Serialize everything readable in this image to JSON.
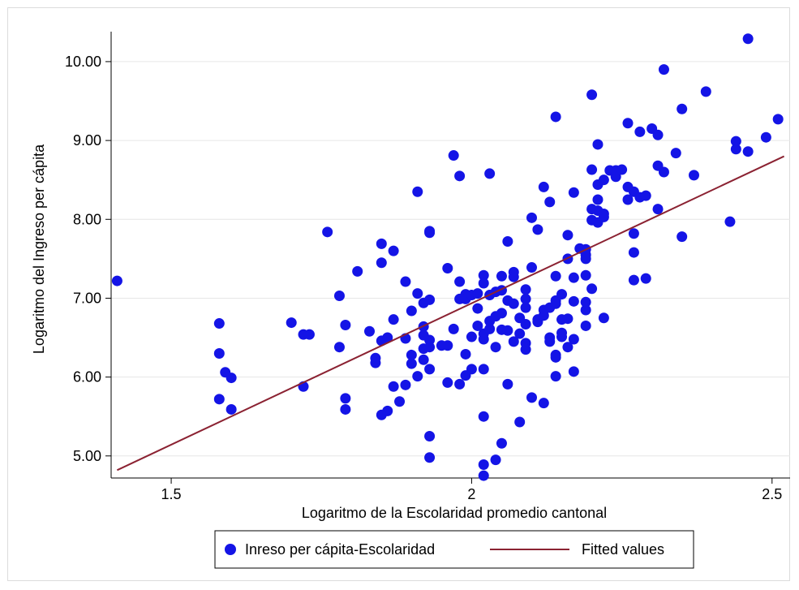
{
  "chart_data": {
    "type": "scatter",
    "title": "",
    "xlabel": "Logaritmo de la Escolaridad promedio cantonal",
    "ylabel": "Logaritmo del Ingreso per cápita",
    "xlim": [
      1.4,
      2.53
    ],
    "ylim": [
      4.72,
      10.38
    ],
    "x_ticks": [
      1.5,
      2,
      2.5
    ],
    "x_tick_labels": [
      "1.5",
      "2",
      "2.5"
    ],
    "y_ticks": [
      5,
      6,
      7,
      8,
      9,
      10
    ],
    "y_tick_labels": [
      "5.00",
      "6.00",
      "7.00",
      "8.00",
      "9.00",
      "10.00"
    ],
    "grid": "horizontal",
    "legend_position": "bottom",
    "series": [
      {
        "name": "Inreso per cápita-Escolaridad",
        "kind": "scatter",
        "color": "#1414e6",
        "points": [
          [
            1.41,
            7.22
          ],
          [
            1.58,
            6.68
          ],
          [
            1.58,
            6.3
          ],
          [
            1.59,
            6.06
          ],
          [
            1.6,
            5.99
          ],
          [
            1.58,
            5.72
          ],
          [
            1.6,
            5.59
          ],
          [
            1.7,
            6.69
          ],
          [
            1.72,
            6.54
          ],
          [
            1.73,
            6.54
          ],
          [
            1.72,
            5.88
          ],
          [
            1.76,
            7.84
          ],
          [
            1.78,
            7.03
          ],
          [
            1.78,
            6.38
          ],
          [
            1.79,
            6.66
          ],
          [
            1.79,
            5.73
          ],
          [
            1.79,
            5.59
          ],
          [
            1.81,
            7.34
          ],
          [
            1.83,
            6.58
          ],
          [
            1.84,
            6.18
          ],
          [
            1.84,
            6.24
          ],
          [
            1.85,
            7.69
          ],
          [
            1.85,
            7.45
          ],
          [
            1.85,
            6.46
          ],
          [
            1.86,
            6.5
          ],
          [
            1.86,
            5.57
          ],
          [
            1.85,
            5.52
          ],
          [
            1.87,
            7.6
          ],
          [
            1.87,
            6.73
          ],
          [
            1.87,
            5.88
          ],
          [
            1.88,
            5.69
          ],
          [
            1.89,
            6.49
          ],
          [
            1.89,
            7.21
          ],
          [
            1.89,
            5.9
          ],
          [
            1.9,
            6.84
          ],
          [
            1.9,
            6.28
          ],
          [
            1.9,
            6.17
          ],
          [
            1.91,
            6.01
          ],
          [
            1.91,
            8.35
          ],
          [
            1.91,
            7.06
          ],
          [
            1.92,
            6.94
          ],
          [
            1.92,
            6.64
          ],
          [
            1.92,
            6.53
          ],
          [
            1.92,
            6.36
          ],
          [
            1.92,
            6.22
          ],
          [
            1.93,
            7.83
          ],
          [
            1.93,
            7.85
          ],
          [
            1.93,
            6.98
          ],
          [
            1.93,
            6.47
          ],
          [
            1.93,
            6.38
          ],
          [
            1.93,
            6.1
          ],
          [
            1.93,
            5.25
          ],
          [
            1.93,
            4.98
          ],
          [
            1.95,
            6.4
          ],
          [
            1.96,
            7.38
          ],
          [
            1.96,
            6.4
          ],
          [
            1.96,
            5.93
          ],
          [
            1.97,
            8.81
          ],
          [
            1.97,
            6.61
          ],
          [
            1.98,
            8.55
          ],
          [
            1.98,
            7.21
          ],
          [
            1.98,
            6.99
          ],
          [
            1.98,
            5.91
          ],
          [
            1.99,
            7.05
          ],
          [
            1.99,
            6.29
          ],
          [
            1.99,
            6.02
          ],
          [
            1.99,
            6.99
          ],
          [
            2.0,
            7.04
          ],
          [
            2.0,
            6.51
          ],
          [
            2.0,
            6.1
          ],
          [
            2.01,
            7.06
          ],
          [
            2.01,
            6.87
          ],
          [
            2.01,
            6.65
          ],
          [
            2.02,
            7.29
          ],
          [
            2.02,
            7.19
          ],
          [
            2.02,
            6.55
          ],
          [
            2.02,
            6.48
          ],
          [
            2.02,
            6.1
          ],
          [
            2.02,
            4.75
          ],
          [
            2.02,
            5.5
          ],
          [
            2.02,
            4.89
          ],
          [
            2.03,
            8.58
          ],
          [
            2.03,
            7.04
          ],
          [
            2.03,
            6.61
          ],
          [
            2.03,
            6.71
          ],
          [
            2.04,
            6.38
          ],
          [
            2.04,
            7.08
          ],
          [
            2.04,
            6.77
          ],
          [
            2.04,
            4.95
          ],
          [
            2.05,
            7.28
          ],
          [
            2.05,
            7.1
          ],
          [
            2.05,
            6.81
          ],
          [
            2.05,
            6.6
          ],
          [
            2.05,
            5.16
          ],
          [
            2.06,
            7.72
          ],
          [
            2.06,
            6.97
          ],
          [
            2.06,
            6.59
          ],
          [
            2.06,
            5.91
          ],
          [
            2.07,
            7.33
          ],
          [
            2.07,
            7.27
          ],
          [
            2.07,
            6.93
          ],
          [
            2.07,
            6.45
          ],
          [
            2.08,
            6.55
          ],
          [
            2.08,
            6.75
          ],
          [
            2.08,
            5.43
          ],
          [
            2.09,
            7.11
          ],
          [
            2.09,
            6.99
          ],
          [
            2.09,
            6.88
          ],
          [
            2.09,
            6.67
          ],
          [
            2.09,
            6.43
          ],
          [
            2.09,
            6.35
          ],
          [
            2.1,
            7.39
          ],
          [
            2.1,
            5.74
          ],
          [
            2.1,
            8.02
          ],
          [
            2.11,
            6.73
          ],
          [
            2.11,
            6.7
          ],
          [
            2.11,
            7.87
          ],
          [
            2.12,
            6.78
          ],
          [
            2.12,
            8.41
          ],
          [
            2.12,
            6.85
          ],
          [
            2.12,
            5.67
          ],
          [
            2.13,
            8.22
          ],
          [
            2.13,
            6.88
          ],
          [
            2.13,
            6.45
          ],
          [
            2.13,
            6.5
          ],
          [
            2.14,
            9.3
          ],
          [
            2.14,
            7.28
          ],
          [
            2.14,
            6.97
          ],
          [
            2.14,
            6.93
          ],
          [
            2.14,
            6.01
          ],
          [
            2.14,
            6.25
          ],
          [
            2.14,
            6.28
          ],
          [
            2.15,
            7.05
          ],
          [
            2.15,
            6.73
          ],
          [
            2.15,
            6.56
          ],
          [
            2.15,
            6.51
          ],
          [
            2.16,
            7.8
          ],
          [
            2.16,
            7.5
          ],
          [
            2.16,
            6.74
          ],
          [
            2.16,
            6.38
          ],
          [
            2.17,
            8.34
          ],
          [
            2.17,
            7.26
          ],
          [
            2.17,
            6.96
          ],
          [
            2.17,
            6.48
          ],
          [
            2.17,
            6.07
          ],
          [
            2.18,
            7.63
          ],
          [
            2.19,
            7.62
          ],
          [
            2.19,
            7.55
          ],
          [
            2.19,
            7.5
          ],
          [
            2.19,
            7.29
          ],
          [
            2.19,
            6.95
          ],
          [
            2.19,
            6.85
          ],
          [
            2.19,
            6.65
          ],
          [
            2.2,
            8.63
          ],
          [
            2.2,
            8.13
          ],
          [
            2.2,
            7.99
          ],
          [
            2.2,
            7.12
          ],
          [
            2.2,
            9.58
          ],
          [
            2.21,
            8.95
          ],
          [
            2.21,
            8.25
          ],
          [
            2.21,
            8.44
          ],
          [
            2.21,
            8.11
          ],
          [
            2.21,
            7.96
          ],
          [
            2.22,
            8.5
          ],
          [
            2.22,
            8.07
          ],
          [
            2.22,
            8.03
          ],
          [
            2.22,
            6.75
          ],
          [
            2.23,
            8.62
          ],
          [
            2.24,
            8.54
          ],
          [
            2.24,
            8.62
          ],
          [
            2.25,
            8.63
          ],
          [
            2.26,
            9.22
          ],
          [
            2.26,
            8.41
          ],
          [
            2.26,
            8.25
          ],
          [
            2.27,
            8.35
          ],
          [
            2.27,
            7.58
          ],
          [
            2.27,
            7.82
          ],
          [
            2.27,
            7.23
          ],
          [
            2.28,
            9.11
          ],
          [
            2.28,
            8.28
          ],
          [
            2.29,
            7.25
          ],
          [
            2.29,
            8.3
          ],
          [
            2.3,
            9.15
          ],
          [
            2.31,
            9.07
          ],
          [
            2.31,
            8.68
          ],
          [
            2.31,
            8.13
          ],
          [
            2.32,
            9.9
          ],
          [
            2.32,
            8.6
          ],
          [
            2.34,
            8.84
          ],
          [
            2.35,
            9.4
          ],
          [
            2.35,
            7.78
          ],
          [
            2.37,
            8.56
          ],
          [
            2.39,
            9.62
          ],
          [
            2.43,
            7.97
          ],
          [
            2.44,
            8.99
          ],
          [
            2.44,
            8.89
          ],
          [
            2.46,
            10.29
          ],
          [
            2.46,
            8.86
          ],
          [
            2.49,
            9.04
          ],
          [
            2.51,
            9.27
          ]
        ]
      },
      {
        "name": "Fitted values",
        "kind": "line",
        "color": "#8b2232",
        "x": [
          1.41,
          2.52
        ],
        "values": [
          4.82,
          8.8
        ]
      }
    ]
  }
}
